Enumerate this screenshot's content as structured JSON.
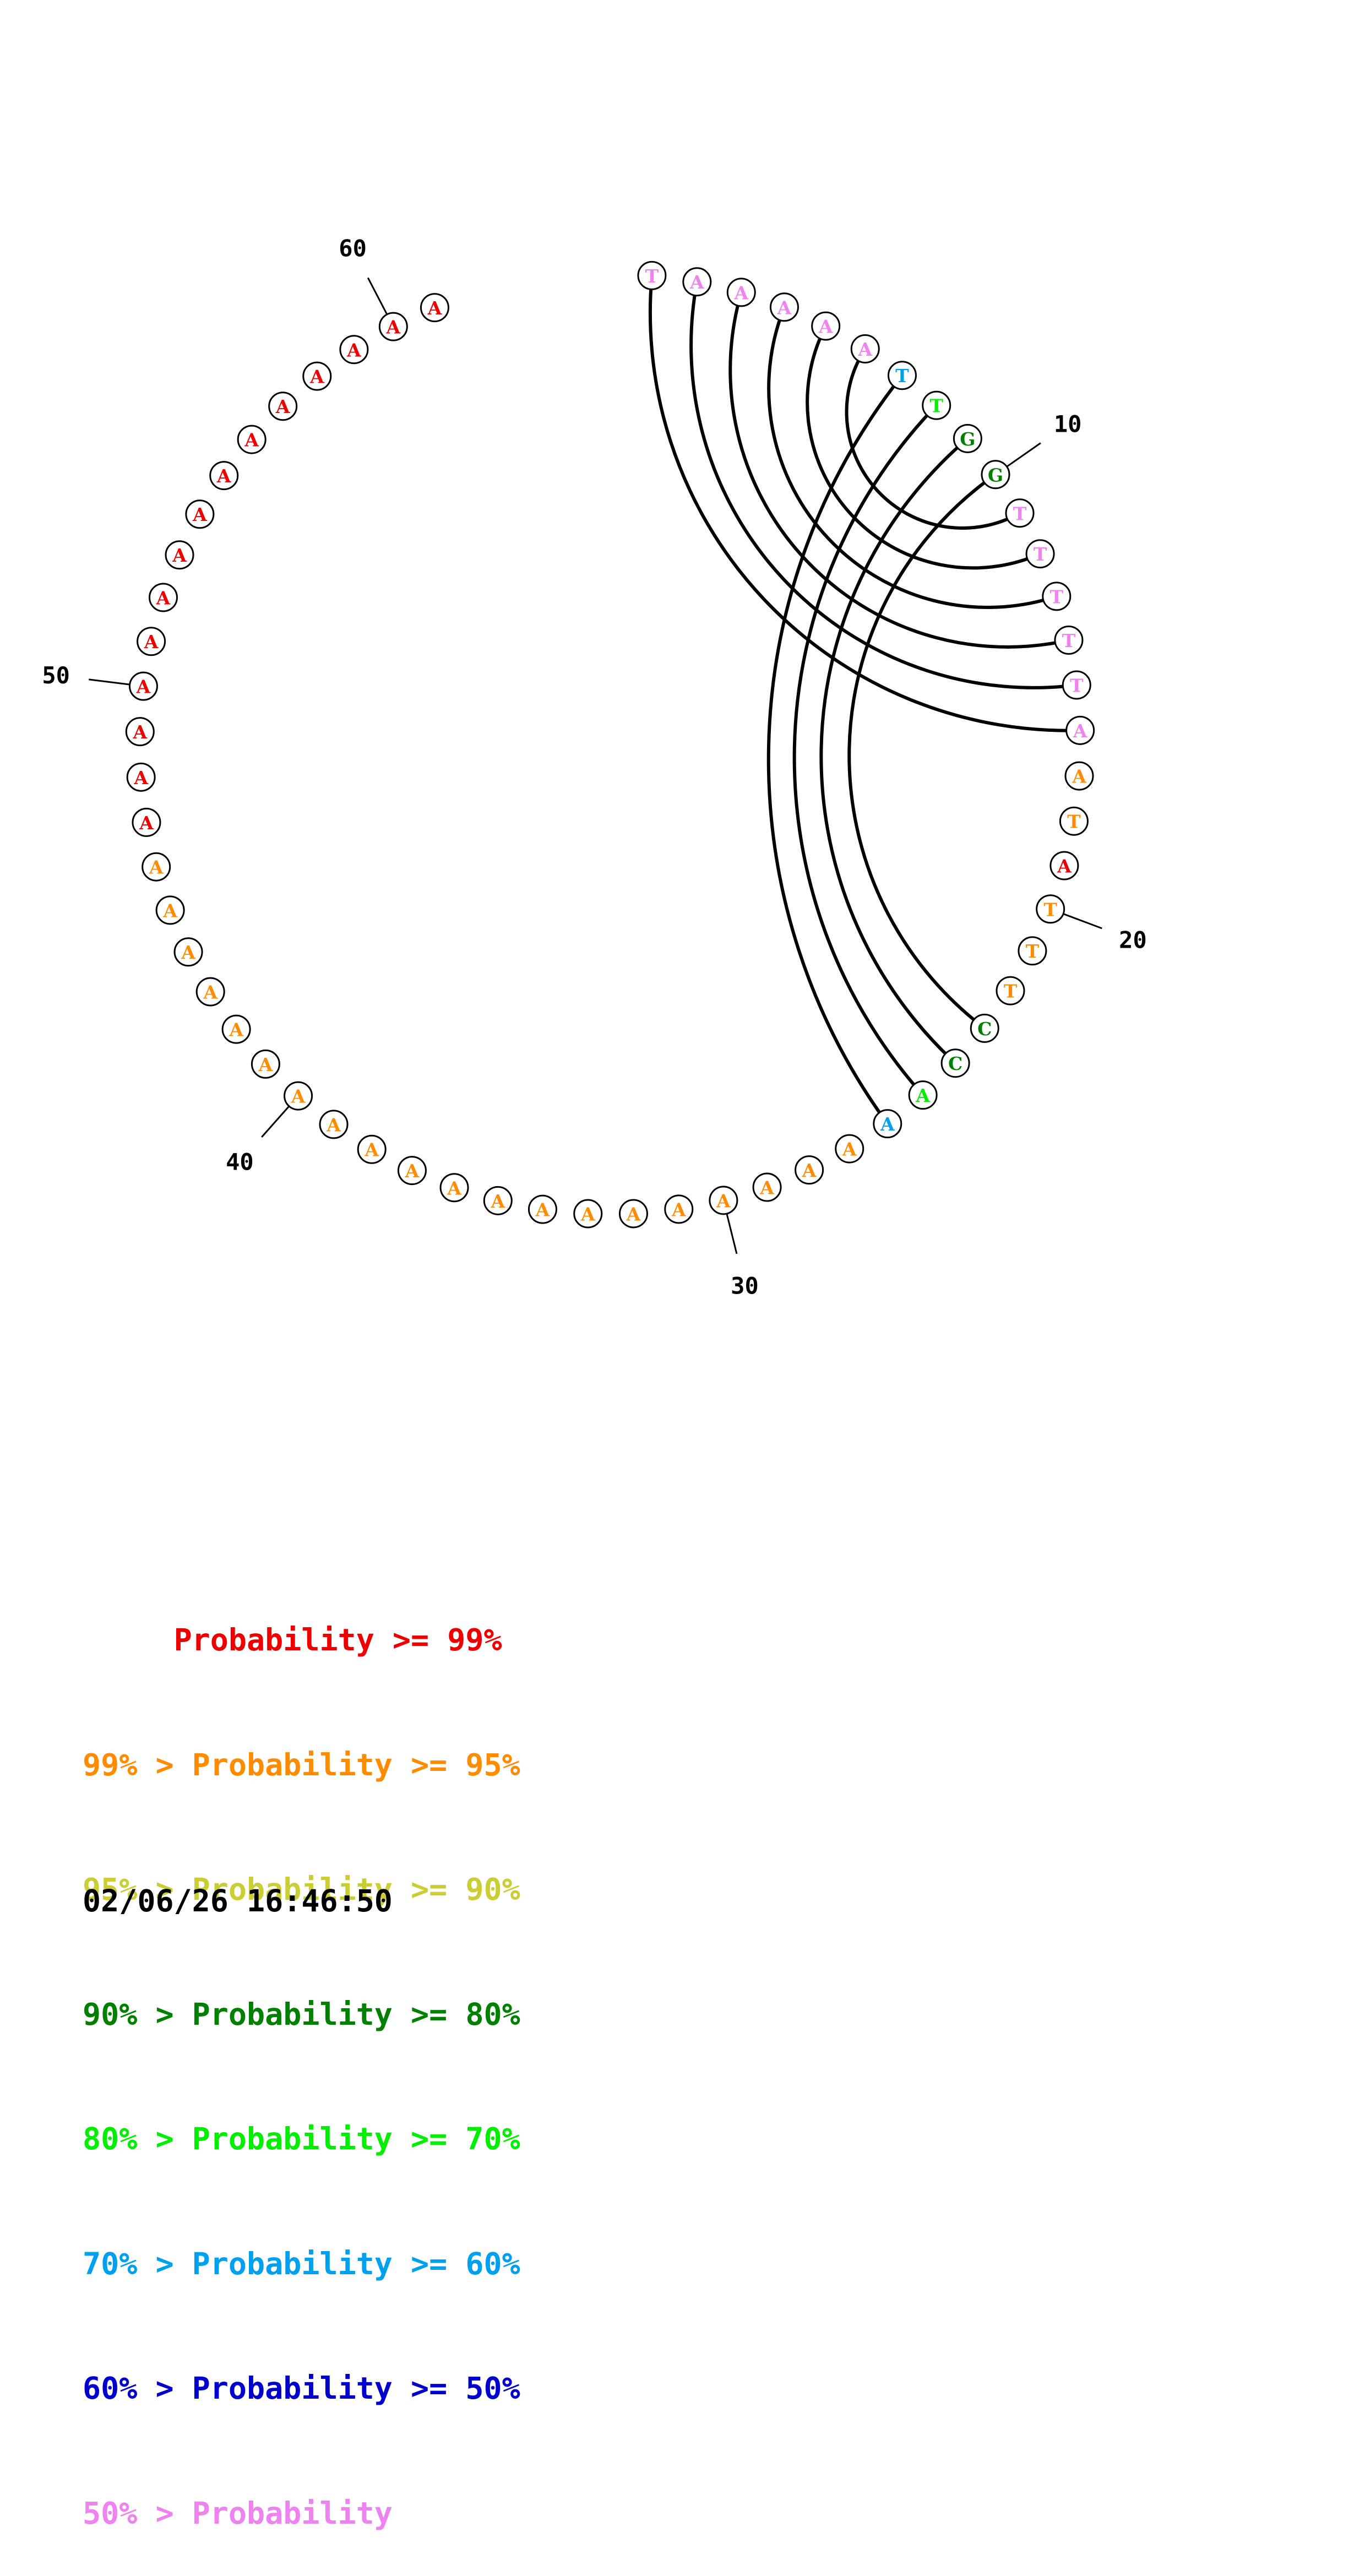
{
  "sequence": [
    "T",
    "A",
    "A",
    "A",
    "A",
    "A",
    "T",
    "T",
    "G",
    "G",
    "T",
    "T",
    "T",
    "T",
    "T",
    "A",
    "A",
    "T",
    "A",
    "T",
    "T",
    "T",
    "C",
    "C",
    "A",
    "A",
    "A",
    "A",
    "A",
    "A",
    "A",
    "A",
    "A",
    "A",
    "A",
    "A",
    "A",
    "A",
    "A",
    "A",
    "A",
    "A",
    "A",
    "A",
    "A",
    "A",
    "A",
    "A",
    "A",
    "A",
    "A",
    "A",
    "A",
    "A",
    "A",
    "A",
    "A",
    "A",
    "A",
    "A",
    "A"
  ],
  "probability_colors": [
    "#ee82ee",
    "#ee82ee",
    "#ee82ee",
    "#ee82ee",
    "#ee82ee",
    "#ee82ee",
    "#00a0f0",
    "#00ee00",
    "#008000",
    "#008000",
    "#ee82ee",
    "#ee82ee",
    "#ee82ee",
    "#ee82ee",
    "#ee82ee",
    "#ee82ee",
    "#ff8c00",
    "#ff8c00",
    "#ee0000",
    "#ff8c00",
    "#ff8c00",
    "#ff8c00",
    "#008000",
    "#008000",
    "#00ee00",
    "#00a0f0",
    "#ff8c00",
    "#ff8c00",
    "#ff8c00",
    "#ff8c00",
    "#ff8c00",
    "#ff8c00",
    "#ff8c00",
    "#ff8c00",
    "#ff8c00",
    "#ff8c00",
    "#ff8c00",
    "#ff8c00",
    "#ff8c00",
    "#ff8c00",
    "#ff8c00",
    "#ff8c00",
    "#ff8c00",
    "#ff8c00",
    "#ff8c00",
    "#ff8c00",
    "#ee0000",
    "#ee0000",
    "#ee0000",
    "#ee0000",
    "#ee0000",
    "#ee0000",
    "#ee0000",
    "#ee0000",
    "#ee0000",
    "#ee0000",
    "#ee0000",
    "#ee0000",
    "#ee0000",
    "#ee0000",
    "#ee0000"
  ],
  "base_pairs": [
    [
      1,
      16
    ],
    [
      2,
      15
    ],
    [
      3,
      14
    ],
    [
      4,
      13
    ],
    [
      5,
      12
    ],
    [
      6,
      11
    ],
    [
      7,
      26
    ],
    [
      8,
      25
    ],
    [
      9,
      24
    ],
    [
      10,
      23
    ]
  ],
  "position_labels": [
    {
      "index": 10,
      "text": "10"
    },
    {
      "index": 20,
      "text": "20"
    },
    {
      "index": 30,
      "text": "30"
    },
    {
      "index": 40,
      "text": "40"
    },
    {
      "index": 50,
      "text": "50"
    },
    {
      "index": 60,
      "text": "60"
    }
  ],
  "legend": [
    {
      "text": "     Probability >= 99%",
      "color": "#ee0000"
    },
    {
      "text": "99% > Probability >= 95%",
      "color": "#ff8c00"
    },
    {
      "text": "95% > Probability >= 90%",
      "color": "#cccc33"
    },
    {
      "text": "90% > Probability >= 80%",
      "color": "#008000"
    },
    {
      "text": "80% > Probability >= 70%",
      "color": "#00ee00"
    },
    {
      "text": "70% > Probability >= 60%",
      "color": "#00a0f0"
    },
    {
      "text": "60% > Probability >= 50%",
      "color": "#0000cc"
    },
    {
      "text": "50% > Probability",
      "color": "#ee82ee"
    }
  ],
  "timestamp": "02/06/26 16:46:50"
}
